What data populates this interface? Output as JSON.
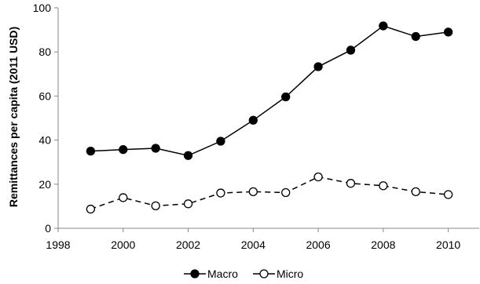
{
  "chart_data": {
    "type": "line",
    "title": "",
    "xlabel": "",
    "ylabel": "Remittances per capita (2011 USD)",
    "xlim": [
      1998,
      2011
    ],
    "ylim": [
      0,
      100
    ],
    "x_ticks": [
      "1998",
      "2000",
      "2002",
      "2004",
      "2006",
      "2008",
      "2010"
    ],
    "y_ticks": [
      "0",
      "20",
      "40",
      "60",
      "80",
      "100"
    ],
    "x": [
      1999,
      2000,
      2001,
      2002,
      2003,
      2004,
      2005,
      2006,
      2007,
      2008,
      2009,
      2010
    ],
    "grid": false,
    "legend_position": "bottom",
    "series": [
      {
        "name": "Macro",
        "style": "solid",
        "marker": "filled-circle",
        "color": "#000000",
        "values": [
          35,
          35.7,
          36.3,
          33,
          39.5,
          49,
          59.6,
          73.3,
          80.8,
          91.8,
          87,
          89
        ]
      },
      {
        "name": "Micro",
        "style": "dashed",
        "marker": "open-circle",
        "color": "#000000",
        "values": [
          8.7,
          13.9,
          10.2,
          11.1,
          16,
          16.6,
          16.2,
          23.3,
          20.4,
          19.3,
          16.6,
          15.3
        ]
      }
    ]
  }
}
